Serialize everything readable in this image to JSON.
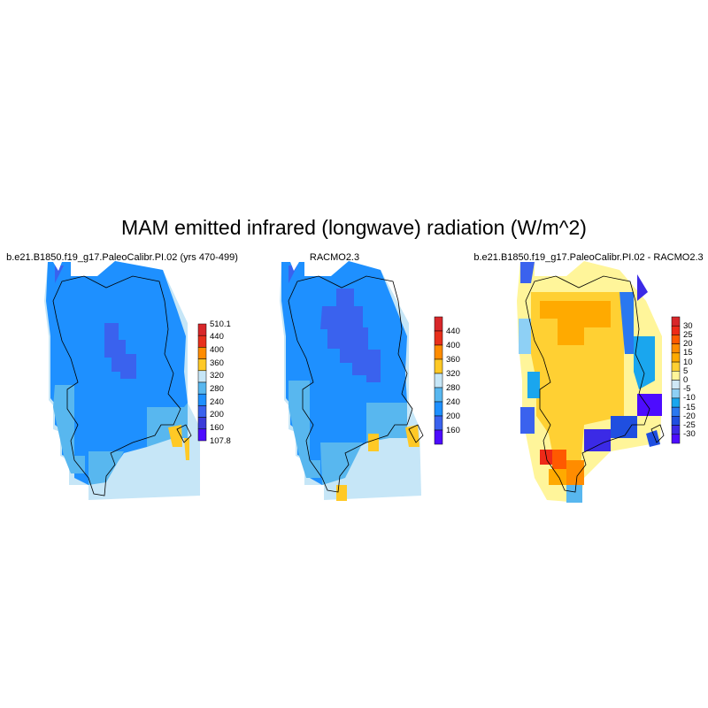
{
  "title": "MAM emitted infrared (longwave) radiation (W/m^2)",
  "panels": [
    {
      "title": "b.e21.B1850.f19_g17.PaleoCalibr.PI.02 (yrs 470-499)",
      "colorbar": {
        "labels": [
          "510.1",
          "440",
          "400",
          "360",
          "320",
          "280",
          "240",
          "200",
          "160",
          "107.8"
        ],
        "colors": [
          "#d8272a",
          "#e8301c",
          "#ff8c00",
          "#ffc926",
          "#c6e6f7",
          "#58b7ef",
          "#1e90ff",
          "#3a62ee",
          "#3b3bd9",
          "#4d0cff"
        ]
      }
    },
    {
      "title": "RACMO2.3",
      "colorbar": {
        "labels": [
          "440",
          "400",
          "360",
          "320",
          "280",
          "240",
          "200",
          "160"
        ],
        "colors": [
          "#d8272a",
          "#e8301c",
          "#ff8c00",
          "#ffc926",
          "#c6e6f7",
          "#58b7ef",
          "#1e90ff",
          "#3a62ee",
          "#4d0cff"
        ]
      }
    },
    {
      "title": "b.e21.B1850.f19_g17.PaleoCalibr.PI.02 - RACMO2.3",
      "colorbar": {
        "labels": [
          "30",
          "25",
          "20",
          "15",
          "10",
          "5",
          "0",
          "-5",
          "-10",
          "-15",
          "-20",
          "-25",
          "-30"
        ],
        "colors": [
          "#d8272a",
          "#ee2a18",
          "#ff5a00",
          "#ff8c00",
          "#ffaa00",
          "#ffd033",
          "#fff59a",
          "#cfe8f6",
          "#8ed0f5",
          "#1aa6ee",
          "#2a78f0",
          "#1f4fe0",
          "#3b2ae6",
          "#4d0cff"
        ]
      }
    }
  ]
}
